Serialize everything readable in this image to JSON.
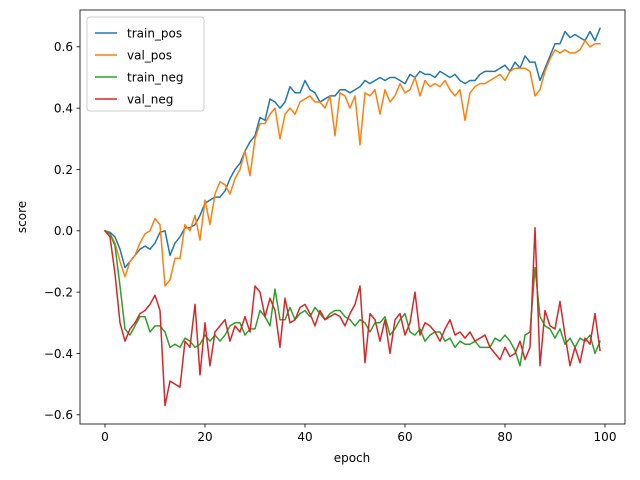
{
  "chart_data": {
    "type": "line",
    "title": "",
    "xlabel": "epoch",
    "ylabel": "score",
    "xlim": [
      -5,
      104
    ],
    "ylim": [
      -0.63,
      0.72
    ],
    "xticks": [
      0,
      20,
      40,
      60,
      80,
      100
    ],
    "xtick_labels": [
      "0",
      "20",
      "40",
      "60",
      "80",
      "100"
    ],
    "yticks": [
      -0.6,
      -0.4,
      -0.2,
      0.0,
      0.2,
      0.4,
      0.6
    ],
    "ytick_labels": [
      "−0.6",
      "−0.4",
      "−0.2",
      "0.0",
      "0.2",
      "0.4",
      "0.6"
    ],
    "grid": false,
    "legend_position": "top-left",
    "x": [
      0,
      1,
      2,
      3,
      4,
      5,
      6,
      7,
      8,
      9,
      10,
      11,
      12,
      13,
      14,
      15,
      16,
      17,
      18,
      19,
      20,
      21,
      22,
      23,
      24,
      25,
      26,
      27,
      28,
      29,
      30,
      31,
      32,
      33,
      34,
      35,
      36,
      37,
      38,
      39,
      40,
      41,
      42,
      43,
      44,
      45,
      46,
      47,
      48,
      49,
      50,
      51,
      52,
      53,
      54,
      55,
      56,
      57,
      58,
      59,
      60,
      61,
      62,
      63,
      64,
      65,
      66,
      67,
      68,
      69,
      70,
      71,
      72,
      73,
      74,
      75,
      76,
      77,
      78,
      79,
      80,
      81,
      82,
      83,
      84,
      85,
      86,
      87,
      88,
      89,
      90,
      91,
      92,
      93,
      94,
      95,
      96,
      97,
      98,
      99
    ],
    "series": [
      {
        "name": "train_pos",
        "color": "#1f77b4",
        "values": [
          0.0,
          -0.005,
          -0.02,
          -0.06,
          -0.12,
          -0.1,
          -0.08,
          -0.06,
          -0.05,
          -0.06,
          -0.04,
          -0.005,
          0.0,
          -0.08,
          -0.04,
          -0.02,
          0.01,
          0.01,
          0.02,
          0.05,
          0.09,
          0.1,
          0.11,
          0.11,
          0.13,
          0.17,
          0.2,
          0.22,
          0.26,
          0.29,
          0.31,
          0.37,
          0.36,
          0.43,
          0.42,
          0.4,
          0.42,
          0.47,
          0.45,
          0.45,
          0.49,
          0.46,
          0.45,
          0.42,
          0.43,
          0.44,
          0.44,
          0.46,
          0.46,
          0.45,
          0.46,
          0.47,
          0.49,
          0.48,
          0.49,
          0.5,
          0.49,
          0.5,
          0.5,
          0.49,
          0.48,
          0.51,
          0.5,
          0.52,
          0.51,
          0.51,
          0.5,
          0.52,
          0.51,
          0.5,
          0.51,
          0.49,
          0.48,
          0.49,
          0.49,
          0.51,
          0.52,
          0.52,
          0.52,
          0.53,
          0.54,
          0.52,
          0.55,
          0.53,
          0.57,
          0.55,
          0.55,
          0.49,
          0.53,
          0.57,
          0.61,
          0.61,
          0.65,
          0.63,
          0.64,
          0.63,
          0.62,
          0.65,
          0.62,
          0.66
        ]
      },
      {
        "name": "val_pos",
        "color": "#ff7f0e",
        "values": [
          0.0,
          -0.01,
          -0.04,
          -0.1,
          -0.15,
          -0.1,
          -0.08,
          -0.04,
          -0.01,
          0.0,
          0.04,
          0.02,
          -0.18,
          -0.16,
          -0.09,
          -0.09,
          0.02,
          0.0,
          0.05,
          -0.03,
          0.1,
          0.02,
          0.12,
          0.16,
          0.15,
          0.12,
          0.17,
          0.2,
          0.26,
          0.18,
          0.3,
          0.35,
          0.35,
          0.38,
          0.4,
          0.3,
          0.38,
          0.4,
          0.38,
          0.42,
          0.43,
          0.44,
          0.42,
          0.42,
          0.4,
          0.44,
          0.31,
          0.45,
          0.44,
          0.4,
          0.44,
          0.28,
          0.45,
          0.44,
          0.46,
          0.38,
          0.46,
          0.42,
          0.44,
          0.48,
          0.45,
          0.46,
          0.5,
          0.44,
          0.49,
          0.47,
          0.48,
          0.47,
          0.49,
          0.46,
          0.44,
          0.46,
          0.36,
          0.45,
          0.47,
          0.48,
          0.48,
          0.49,
          0.5,
          0.51,
          0.49,
          0.52,
          0.53,
          0.53,
          0.53,
          0.52,
          0.44,
          0.46,
          0.52,
          0.56,
          0.59,
          0.58,
          0.59,
          0.58,
          0.58,
          0.59,
          0.62,
          0.6,
          0.61,
          0.61
        ]
      },
      {
        "name": "train_neg",
        "color": "#2ca02c",
        "values": [
          0.0,
          -0.01,
          -0.05,
          -0.18,
          -0.32,
          -0.34,
          -0.31,
          -0.28,
          -0.28,
          -0.33,
          -0.31,
          -0.31,
          -0.33,
          -0.38,
          -0.37,
          -0.38,
          -0.35,
          -0.36,
          -0.38,
          -0.37,
          -0.34,
          -0.36,
          -0.34,
          -0.36,
          -0.34,
          -0.31,
          -0.3,
          -0.3,
          -0.34,
          -0.32,
          -0.32,
          -0.26,
          -0.28,
          -0.31,
          -0.19,
          -0.29,
          -0.29,
          -0.25,
          -0.29,
          -0.27,
          -0.26,
          -0.28,
          -0.25,
          -0.27,
          -0.29,
          -0.27,
          -0.26,
          -0.26,
          -0.28,
          -0.29,
          -0.31,
          -0.29,
          -0.3,
          -0.33,
          -0.3,
          -0.3,
          -0.28,
          -0.34,
          -0.32,
          -0.29,
          -0.27,
          -0.33,
          -0.34,
          -0.32,
          -0.36,
          -0.34,
          -0.33,
          -0.33,
          -0.36,
          -0.35,
          -0.38,
          -0.36,
          -0.37,
          -0.37,
          -0.36,
          -0.38,
          -0.38,
          -0.38,
          -0.35,
          -0.36,
          -0.34,
          -0.36,
          -0.39,
          -0.44,
          -0.34,
          -0.33,
          -0.12,
          -0.28,
          -0.31,
          -0.32,
          -0.35,
          -0.32,
          -0.37,
          -0.35,
          -0.38,
          -0.35,
          -0.36,
          -0.34,
          -0.4,
          -0.36
        ]
      },
      {
        "name": "val_neg",
        "color": "#d62728",
        "values": [
          0.0,
          -0.02,
          -0.14,
          -0.3,
          -0.36,
          -0.32,
          -0.3,
          -0.27,
          -0.26,
          -0.24,
          -0.21,
          -0.26,
          -0.57,
          -0.49,
          -0.5,
          -0.51,
          -0.36,
          -0.38,
          -0.24,
          -0.47,
          -0.3,
          -0.44,
          -0.33,
          -0.31,
          -0.29,
          -0.36,
          -0.31,
          -0.33,
          -0.28,
          -0.33,
          -0.18,
          -0.2,
          -0.28,
          -0.22,
          -0.26,
          -0.38,
          -0.22,
          -0.3,
          -0.29,
          -0.25,
          -0.24,
          -0.27,
          -0.31,
          -0.26,
          -0.29,
          -0.28,
          -0.27,
          -0.28,
          -0.31,
          -0.27,
          -0.24,
          -0.18,
          -0.43,
          -0.27,
          -0.29,
          -0.36,
          -0.29,
          -0.4,
          -0.29,
          -0.27,
          -0.34,
          -0.3,
          -0.2,
          -0.34,
          -0.3,
          -0.31,
          -0.33,
          -0.36,
          -0.32,
          -0.29,
          -0.34,
          -0.33,
          -0.35,
          -0.33,
          -0.36,
          -0.35,
          -0.34,
          -0.38,
          -0.4,
          -0.42,
          -0.38,
          -0.41,
          -0.4,
          -0.36,
          -0.42,
          -0.38,
          0.01,
          -0.44,
          -0.26,
          -0.31,
          -0.32,
          -0.23,
          -0.34,
          -0.44,
          -0.38,
          -0.43,
          -0.35,
          -0.37,
          -0.27,
          -0.39
        ]
      }
    ]
  }
}
